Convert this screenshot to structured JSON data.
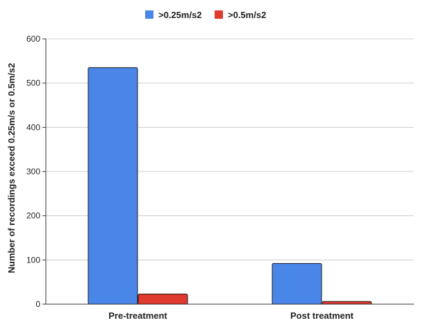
{
  "chart_data": {
    "type": "bar",
    "categories": [
      "Pre-treatment",
      "Post treatment"
    ],
    "series": [
      {
        "name": ">0.25m/s2",
        "color": "#4a86e8",
        "values": [
          535,
          92
        ]
      },
      {
        "name": ">0.5m/s2",
        "color": "#e0392d",
        "values": [
          23,
          6
        ]
      }
    ],
    "ylabel": "Number of recordings exceed 0.25m/s or 0.5m/s2",
    "xlabel": "",
    "ylim": [
      0,
      600
    ],
    "yticks": [
      0,
      100,
      200,
      300,
      400,
      500,
      600
    ],
    "grid": true,
    "legend_position": "top"
  }
}
